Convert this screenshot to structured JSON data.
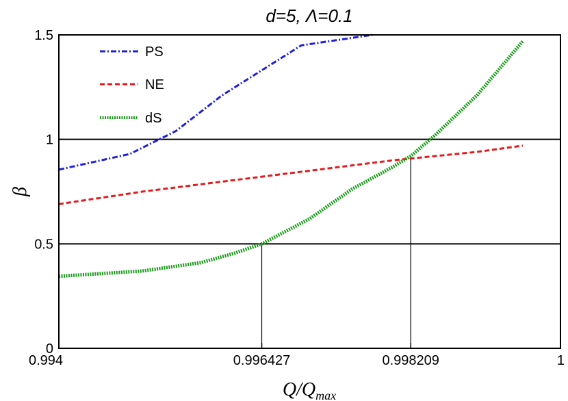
{
  "chart_data": {
    "type": "line",
    "title": "d=5, Λ=0.1",
    "xlabel_main": "Q/Q",
    "xlabel_sub": "max",
    "ylabel": "β",
    "xlim": [
      0.994,
      1.0
    ],
    "ylim": [
      0,
      1.5
    ],
    "x_ticks": [
      {
        "value": 0.994,
        "label": "0.994"
      },
      {
        "value": 0.996427,
        "label": "0.996427"
      },
      {
        "value": 0.998209,
        "label": "0.998209"
      },
      {
        "value": 1.0,
        "label": "1"
      }
    ],
    "y_ticks": [
      {
        "value": 0,
        "label": "0"
      },
      {
        "value": 0.5,
        "label": "0.5"
      },
      {
        "value": 1,
        "label": "1"
      },
      {
        "value": 1.5,
        "label": "1.5"
      }
    ],
    "reference_lines": {
      "horizontal": [
        0.5,
        1.0
      ],
      "vertical": [
        {
          "x": 0.996427,
          "y_top": 0.5
        },
        {
          "x": 0.998209,
          "y_top": 0.92
        }
      ]
    },
    "legend_position": "top-left",
    "series": [
      {
        "name": "PS",
        "color": "#1f1fe0",
        "dash": "dashdot",
        "x": [
          0.994,
          0.99485,
          0.9954,
          0.99595,
          0.9969,
          0.99775
        ],
        "y": [
          0.855,
          0.93,
          1.04,
          1.21,
          1.45,
          1.5
        ]
      },
      {
        "name": "NE",
        "color": "#e41a1c",
        "dash": "dashed",
        "x": [
          0.994,
          0.995,
          0.996,
          0.997,
          0.998,
          0.999,
          0.99955
        ],
        "y": [
          0.69,
          0.75,
          0.8,
          0.85,
          0.9,
          0.94,
          0.97
        ]
      },
      {
        "name": "dS",
        "color": "#1a9e1a",
        "dash": "dotted",
        "x": [
          0.994,
          0.995,
          0.9957,
          0.9961,
          0.996427,
          0.997,
          0.9975,
          0.998,
          0.998209,
          0.9985,
          0.999,
          0.99955
        ],
        "y": [
          0.345,
          0.37,
          0.41,
          0.455,
          0.5,
          0.62,
          0.76,
          0.87,
          0.92,
          1.02,
          1.21,
          1.47
        ]
      }
    ]
  }
}
